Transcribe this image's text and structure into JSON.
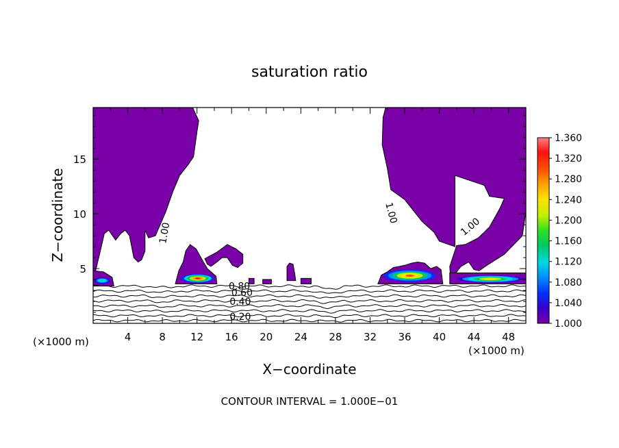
{
  "chart_data": {
    "type": "heatmap",
    "title": "saturation ratio",
    "xlabel": "X−coordinate",
    "ylabel": "Z−coordinate",
    "x_unit_left": "(×1000 m)",
    "x_unit_right": "(×1000 m)",
    "footer": "CONTOUR INTERVAL = 1.000E−01",
    "xlim": [
      0,
      50
    ],
    "ylim": [
      0,
      19.7
    ],
    "x_ticks": [
      4,
      8,
      12,
      16,
      20,
      24,
      28,
      32,
      36,
      40,
      44,
      48
    ],
    "y_ticks": [
      5,
      10,
      15
    ],
    "colorbar": {
      "min": 1.0,
      "max": 1.36,
      "ticks": [
        "1.000",
        "1.040",
        "1.080",
        "1.120",
        "1.160",
        "1.200",
        "1.240",
        "1.280",
        "1.320",
        "1.360"
      ],
      "colors": [
        "#7a00a8",
        "#3a00c8",
        "#0030ff",
        "#0090ff",
        "#00d8e0",
        "#00c860",
        "#30e020",
        "#c0f000",
        "#ffe000",
        "#ffa000",
        "#ff5000",
        "#ff1010",
        "#ff8080"
      ]
    },
    "contour_labels": [
      {
        "text": "1.00",
        "x": 8.6,
        "y": 8.2,
        "angle": -80
      },
      {
        "text": "1.00",
        "x": 34.1,
        "y": 10.0,
        "angle": 75
      },
      {
        "text": "1.00",
        "x": 43.8,
        "y": 8.6,
        "angle": -40
      },
      {
        "text": "0.80",
        "x": 16.9,
        "y": 3.1,
        "angle": 0
      },
      {
        "text": "0.60",
        "x": 17.2,
        "y": 2.5,
        "angle": 0
      },
      {
        "text": "0.40",
        "x": 17.0,
        "y": 1.7,
        "angle": 0
      },
      {
        "text": "0.20",
        "x": 17.0,
        "y": 0.3,
        "angle": 0
      }
    ],
    "contour_levels": [
      0.2,
      0.3,
      0.4,
      0.5,
      0.6,
      0.7,
      0.8,
      0.9,
      1.0
    ],
    "supersaturated_regions": [
      {
        "name": "upper-left",
        "points": [
          [
            0,
            19.7
          ],
          [
            11.5,
            19.7
          ],
          [
            12.2,
            18.5
          ],
          [
            12.0,
            17.5
          ],
          [
            11.6,
            15.2
          ],
          [
            11.0,
            14.5
          ],
          [
            10.0,
            13.5
          ],
          [
            9.2,
            12.0
          ],
          [
            8.4,
            10.2
          ],
          [
            7.2,
            8.0
          ],
          [
            6.4,
            7.8
          ],
          [
            6.0,
            8.5
          ],
          [
            6.0,
            6.6
          ],
          [
            5.6,
            5.8
          ],
          [
            5.2,
            5.6
          ],
          [
            4.7,
            6.0
          ],
          [
            4.2,
            8.0
          ],
          [
            3.7,
            8.5
          ],
          [
            3.2,
            8.2
          ],
          [
            2.6,
            7.6
          ],
          [
            1.8,
            8.5
          ],
          [
            1.3,
            8.2
          ],
          [
            0.8,
            6.5
          ],
          [
            0.5,
            5.5
          ],
          [
            0.2,
            4.5
          ],
          [
            0,
            4.5
          ]
        ]
      },
      {
        "name": "upper-right",
        "points": [
          [
            33.8,
            19.7
          ],
          [
            50,
            19.7
          ],
          [
            50,
            10.2
          ],
          [
            49.6,
            8.0
          ],
          [
            47.5,
            6.3
          ],
          [
            45.5,
            5.3
          ],
          [
            44.6,
            4.8
          ],
          [
            44.0,
            4.9
          ],
          [
            43.4,
            5.6
          ],
          [
            42.5,
            5.2
          ],
          [
            41.3,
            4.0
          ],
          [
            41.2,
            5.2
          ],
          [
            42.0,
            7.1
          ],
          [
            43.0,
            7.2
          ],
          [
            44.5,
            7.8
          ],
          [
            45.8,
            8.8
          ],
          [
            47.0,
            10.5
          ],
          [
            47.5,
            11.4
          ],
          [
            45.8,
            11.6
          ],
          [
            45.2,
            12.6
          ],
          [
            41.8,
            13.5
          ],
          [
            41.8,
            10.8
          ],
          [
            41.8,
            8.0
          ],
          [
            41.8,
            7.0
          ],
          [
            40.0,
            7.5
          ],
          [
            39.4,
            8.3
          ],
          [
            38.0,
            9.3
          ],
          [
            36.0,
            11.3
          ],
          [
            34.4,
            12.2
          ],
          [
            34.0,
            14.1
          ],
          [
            33.4,
            16.3
          ],
          [
            33.5,
            18.8
          ]
        ]
      },
      {
        "name": "left-strip",
        "points": [
          [
            0,
            4.8
          ],
          [
            1.2,
            4.7
          ],
          [
            2.2,
            4.2
          ],
          [
            2.4,
            3.4
          ],
          [
            0,
            3.4
          ]
        ]
      },
      {
        "name": "mound-12",
        "points": [
          [
            9.5,
            3.6
          ],
          [
            14.3,
            3.6
          ],
          [
            14.2,
            4.3
          ],
          [
            13.2,
            5.0
          ],
          [
            12.6,
            5.8
          ],
          [
            11.9,
            6.8
          ],
          [
            11.2,
            7.2
          ],
          [
            10.7,
            6.6
          ],
          [
            10.4,
            5.6
          ],
          [
            9.9,
            4.8
          ]
        ]
      },
      {
        "name": "plume-14",
        "points": [
          [
            12.9,
            5.9
          ],
          [
            14.3,
            6.5
          ],
          [
            15.5,
            7.2
          ],
          [
            16.5,
            6.8
          ],
          [
            17.3,
            6.3
          ],
          [
            17.3,
            5.5
          ],
          [
            16.7,
            5.1
          ],
          [
            16.1,
            5.3
          ],
          [
            15.5,
            6.0
          ],
          [
            14.9,
            6.0
          ],
          [
            14.3,
            5.6
          ],
          [
            13.6,
            5.2
          ],
          [
            13.2,
            5.4
          ]
        ]
      },
      {
        "name": "blob-23",
        "points": [
          [
            22.4,
            3.9
          ],
          [
            22.4,
            5.2
          ],
          [
            22.7,
            5.5
          ],
          [
            23.1,
            5.4
          ],
          [
            23.3,
            4.5
          ],
          [
            23.4,
            3.9
          ]
        ]
      },
      {
        "name": "band-36",
        "points": [
          [
            32.9,
            3.6
          ],
          [
            40.4,
            3.6
          ],
          [
            40.2,
            4.9
          ],
          [
            39.7,
            5.2
          ],
          [
            39.0,
            5.0
          ],
          [
            38.3,
            5.5
          ],
          [
            37.5,
            5.6
          ],
          [
            36.8,
            5.5
          ],
          [
            36.0,
            5.3
          ],
          [
            35.4,
            5.2
          ],
          [
            34.7,
            5.1
          ],
          [
            34.0,
            4.7
          ],
          [
            33.3,
            4.4
          ]
        ]
      },
      {
        "name": "strip-45",
        "points": [
          [
            41.2,
            3.6
          ],
          [
            50,
            3.6
          ],
          [
            50,
            4.6
          ],
          [
            41.2,
            4.6
          ]
        ]
      },
      {
        "name": "dot-18",
        "points": [
          [
            18.0,
            3.6
          ],
          [
            18.6,
            3.6
          ],
          [
            18.6,
            4.1
          ],
          [
            18.0,
            4.1
          ]
        ]
      },
      {
        "name": "dot-20",
        "points": [
          [
            19.6,
            3.6
          ],
          [
            20.6,
            3.6
          ],
          [
            20.6,
            4.0
          ],
          [
            19.6,
            4.0
          ]
        ]
      },
      {
        "name": "dot-25",
        "points": [
          [
            24.0,
            3.6
          ],
          [
            25.2,
            3.6
          ],
          [
            25.2,
            4.1
          ],
          [
            24.0,
            4.1
          ]
        ]
      }
    ],
    "peak_regions": [
      {
        "name": "mound-12-core",
        "value": 1.32,
        "x": [
          10.2,
          14.0
        ],
        "y": [
          3.7,
          4.5
        ]
      },
      {
        "name": "band-36-core",
        "value": 1.3,
        "x": [
          33.6,
          39.6
        ],
        "y": [
          3.8,
          4.9
        ]
      },
      {
        "name": "strip-45-core",
        "value": 1.24,
        "x": [
          42.0,
          49.8
        ],
        "y": [
          3.7,
          4.4
        ]
      },
      {
        "name": "left-strip-core",
        "value": 1.16,
        "x": [
          0.1,
          2.0
        ],
        "y": [
          3.6,
          4.2
        ]
      }
    ]
  }
}
